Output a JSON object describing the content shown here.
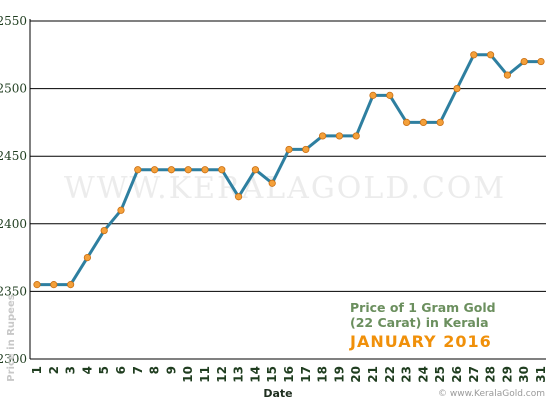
{
  "chart_data": {
    "type": "line",
    "x": [
      "1",
      "2",
      "3",
      "4",
      "5",
      "6",
      "7",
      "8",
      "9",
      "10",
      "11",
      "12",
      "13",
      "14",
      "15",
      "16",
      "17",
      "18",
      "19",
      "20",
      "21",
      "22",
      "23",
      "24",
      "25",
      "26",
      "27",
      "28",
      "29",
      "30",
      "31"
    ],
    "series": [
      {
        "values": [
          2355,
          2355,
          2355,
          2375,
          2395,
          2410,
          2440,
          2440,
          2440,
          2440,
          2440,
          2440,
          2420,
          2440,
          2430,
          2455,
          2455,
          2465,
          2465,
          2465,
          2495,
          2495,
          2475,
          2475,
          2475,
          2500,
          2525,
          2525,
          2510,
          2520,
          2520
        ]
      }
    ],
    "xlabel": "Date",
    "ylabel": "Price in Rupees",
    "ylim": [
      2300,
      2550
    ],
    "yticks": [
      2300,
      2350,
      2400,
      2450,
      2500,
      2550
    ],
    "grid": true,
    "line_color": "#2e7fa0",
    "marker_color": "#f4a03a"
  },
  "annotation": {
    "line1": "Price of 1 Gram Gold",
    "line2": "(22 Carat) in Kerala",
    "line3": "JANUARY 2016"
  },
  "watermark": "WWW.KERALAGOLD.COM",
  "credit": "© www.KeralaGold.com"
}
